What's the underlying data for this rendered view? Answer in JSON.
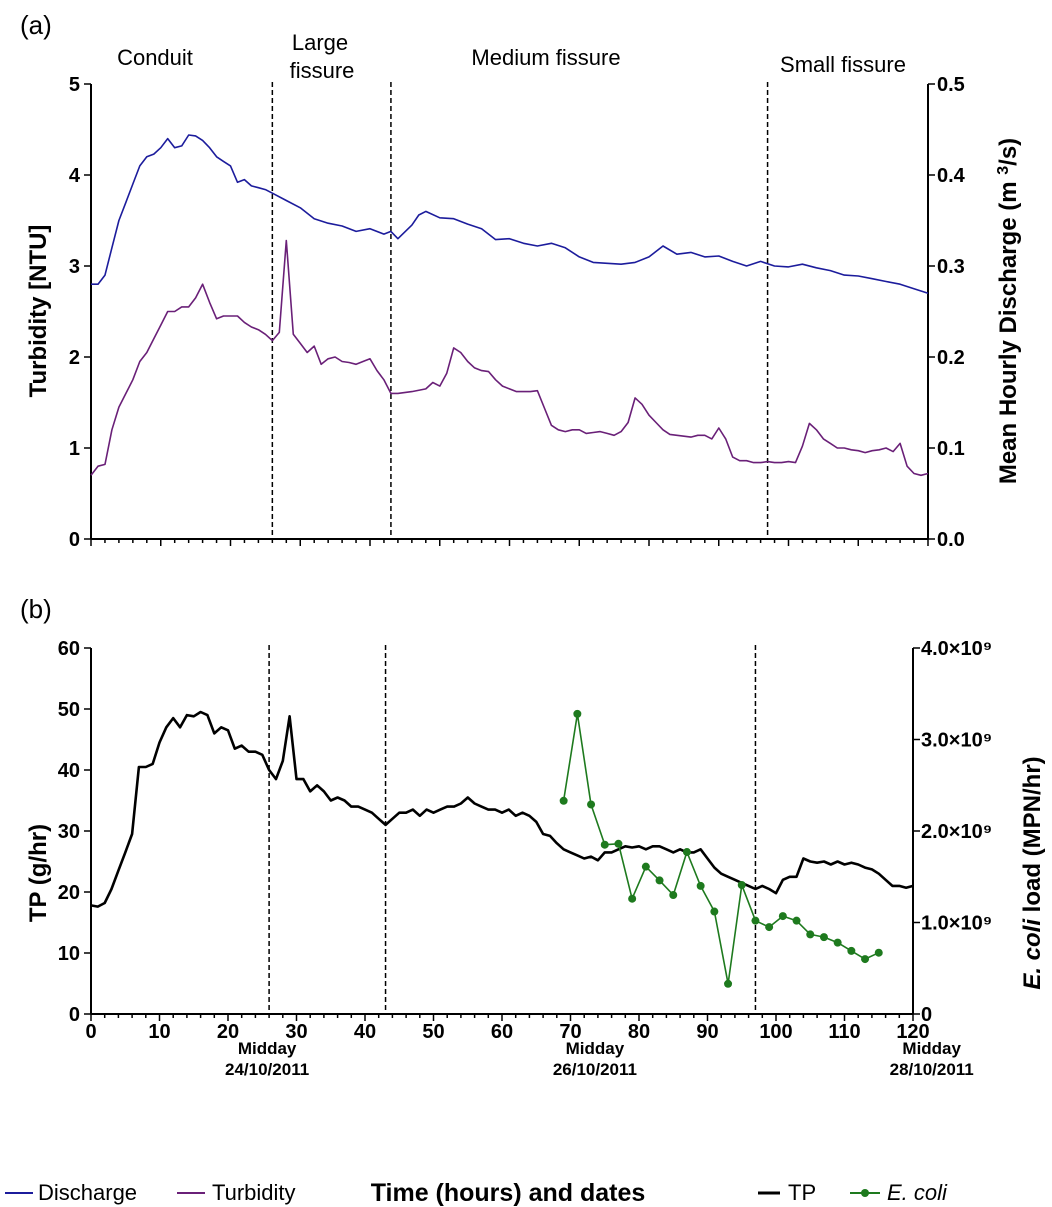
{
  "panel_a": {
    "label": "(a)",
    "regions": [
      "Conduit",
      "Large",
      "fissure",
      "Medium fissure",
      "Small fissure"
    ],
    "left_axis_label": "Turbidity [NTU]",
    "right_axis_label": "Mean Hourly Discharge (m 3/s)",
    "right_axis_label_parts": [
      "Mean Hourly Discharge (m ",
      "3",
      "/s)"
    ]
  },
  "panel_b": {
    "label": "(b)",
    "left_axis_label": "TP (g/hr)",
    "right_axis_label": "E. coli load (MPN/hr)",
    "right_axis_label_parts": [
      "E. coli",
      " load (MPN/hr)"
    ]
  },
  "x_axis": {
    "label": "Time (hours) and dates",
    "date_labels": [
      {
        "x": 26,
        "line1": "Midday",
        "line2": "24/10/2011"
      },
      {
        "x": 74,
        "line1": "Midday",
        "line2": "26/10/2011"
      },
      {
        "x": 122,
        "line1": "Midday",
        "line2": "28/10/2011"
      }
    ]
  },
  "legend": {
    "discharge": "Discharge",
    "turbidity": "Turbidity",
    "tp": "TP",
    "ecoli": "E. coli"
  },
  "colors": {
    "discharge": "#1c1c9c",
    "turbidity": "#6a2078",
    "tp": "#000000",
    "ecoli": "#1e7a1e"
  },
  "chart_data": [
    {
      "type": "line",
      "xlim": [
        0,
        120
      ],
      "x_ticks": [
        0,
        10,
        20,
        30,
        40,
        50,
        60,
        70,
        80,
        90,
        100,
        110,
        120
      ],
      "y_left": {
        "label": "Turbidity [NTU]",
        "lim": [
          0,
          5
        ],
        "ticks": [
          "0",
          "1",
          "2",
          "3",
          "4",
          "5"
        ]
      },
      "y_right": {
        "label": "Mean Hourly Discharge (m 3/s)",
        "lim": [
          0,
          0.5
        ],
        "ticks": [
          "0.0",
          "0.1",
          "0.2",
          "0.3",
          "0.4",
          "0.5"
        ]
      },
      "dividers_x": [
        26,
        43,
        97
      ],
      "series": [
        {
          "name": "Discharge",
          "axis": "right",
          "x": [
            0,
            1,
            2,
            3,
            4,
            5,
            6,
            7,
            8,
            9,
            10,
            11,
            12,
            13,
            14,
            15,
            16,
            17,
            18,
            19,
            20,
            21,
            22,
            23,
            24,
            25,
            26,
            28,
            30,
            32,
            34,
            36,
            38,
            40,
            42,
            43,
            44,
            46,
            47,
            48,
            50,
            52,
            54,
            56,
            58,
            60,
            62,
            64,
            66,
            68,
            70,
            72,
            74,
            76,
            78,
            80,
            82,
            84,
            86,
            88,
            90,
            92,
            94,
            96,
            98,
            100,
            102,
            104,
            106,
            108,
            110,
            112,
            114,
            116,
            118,
            120
          ],
          "values": [
            0.28,
            0.28,
            0.29,
            0.32,
            0.35,
            0.37,
            0.39,
            0.41,
            0.42,
            0.423,
            0.43,
            0.44,
            0.43,
            0.432,
            0.444,
            0.443,
            0.438,
            0.43,
            0.42,
            0.415,
            0.41,
            0.392,
            0.395,
            0.388,
            0.386,
            0.384,
            0.38,
            0.372,
            0.364,
            0.352,
            0.347,
            0.344,
            0.338,
            0.341,
            0.335,
            0.338,
            0.33,
            0.345,
            0.356,
            0.36,
            0.353,
            0.352,
            0.346,
            0.341,
            0.329,
            0.33,
            0.325,
            0.322,
            0.325,
            0.32,
            0.31,
            0.304,
            0.303,
            0.302,
            0.304,
            0.31,
            0.322,
            0.313,
            0.315,
            0.31,
            0.311,
            0.305,
            0.3,
            0.305,
            0.3,
            0.299,
            0.302,
            0.298,
            0.295,
            0.29,
            0.289,
            0.286,
            0.283,
            0.28,
            0.275,
            0.27
          ]
        },
        {
          "name": "Turbidity",
          "axis": "left",
          "x": [
            0,
            1,
            2,
            3,
            4,
            5,
            6,
            7,
            8,
            9,
            10,
            11,
            12,
            13,
            14,
            15,
            16,
            17,
            18,
            19,
            20,
            21,
            22,
            23,
            24,
            25,
            26,
            27,
            28,
            29,
            30,
            31,
            32,
            33,
            34,
            35,
            36,
            37,
            38,
            39,
            40,
            41,
            42,
            43,
            44,
            46,
            48,
            49,
            50,
            51,
            52,
            53,
            54,
            55,
            56,
            57,
            58,
            59,
            60,
            61,
            62,
            63,
            64,
            65,
            66,
            67,
            68,
            69,
            70,
            71,
            72,
            73,
            74,
            75,
            76,
            77,
            78,
            79,
            80,
            81,
            82,
            83,
            84,
            85,
            86,
            87,
            88,
            89,
            90,
            91,
            92,
            93,
            94,
            95,
            96,
            97,
            98,
            99,
            100,
            101,
            102,
            103,
            104,
            105,
            106,
            107,
            108,
            109,
            110,
            111,
            112,
            113,
            114,
            115,
            116,
            117,
            118,
            119,
            120
          ],
          "values": [
            0.7,
            0.8,
            0.82,
            1.2,
            1.45,
            1.6,
            1.75,
            1.95,
            2.05,
            2.2,
            2.35,
            2.5,
            2.5,
            2.55,
            2.55,
            2.65,
            2.8,
            2.6,
            2.42,
            2.45,
            2.45,
            2.45,
            2.38,
            2.33,
            2.3,
            2.25,
            2.18,
            2.27,
            3.28,
            2.25,
            2.15,
            2.05,
            2.12,
            1.92,
            1.98,
            2.0,
            1.95,
            1.94,
            1.92,
            1.95,
            1.98,
            1.85,
            1.75,
            1.6,
            1.6,
            1.62,
            1.65,
            1.72,
            1.68,
            1.82,
            2.1,
            2.05,
            1.95,
            1.88,
            1.85,
            1.84,
            1.75,
            1.68,
            1.65,
            1.62,
            1.62,
            1.62,
            1.63,
            1.44,
            1.25,
            1.2,
            1.18,
            1.2,
            1.2,
            1.16,
            1.17,
            1.18,
            1.16,
            1.14,
            1.18,
            1.28,
            1.55,
            1.48,
            1.36,
            1.28,
            1.2,
            1.15,
            1.14,
            1.13,
            1.12,
            1.14,
            1.14,
            1.1,
            1.22,
            1.1,
            0.9,
            0.86,
            0.86,
            0.84,
            0.84,
            0.85,
            0.84,
            0.84,
            0.85,
            0.84,
            1.02,
            1.27,
            1.2,
            1.1,
            1.05,
            1.0,
            1.0,
            0.98,
            0.97,
            0.95,
            0.97,
            0.98,
            1.0,
            0.96,
            1.05,
            0.8,
            0.72,
            0.7,
            0.72
          ],
          "_note_unused": null
        }
      ]
    },
    {
      "type": "line",
      "xlim": [
        0,
        120
      ],
      "x_ticks": [
        0,
        10,
        20,
        30,
        40,
        50,
        60,
        70,
        80,
        90,
        100,
        110,
        120
      ],
      "y_left": {
        "label": "TP (g/hr)",
        "lim": [
          0,
          60
        ],
        "ticks": [
          "0",
          "10",
          "20",
          "30",
          "40",
          "50",
          "60"
        ]
      },
      "y_right": {
        "label": "E. coli load (MPN/hr)",
        "lim": [
          0,
          4000000000.0
        ],
        "ticks": [
          "0",
          "1.0×10⁹",
          "2.0×10⁹",
          "3.0×10⁹",
          "4.0×10⁹"
        ]
      },
      "dividers_x": [
        26,
        43,
        97
      ],
      "series": [
        {
          "name": "TP",
          "axis": "left",
          "x": [
            0,
            1,
            2,
            3,
            4,
            5,
            6,
            7,
            8,
            9,
            10,
            11,
            12,
            13,
            14,
            15,
            16,
            17,
            18,
            19,
            20,
            21,
            22,
            23,
            24,
            25,
            26,
            27,
            28,
            29,
            30,
            31,
            32,
            33,
            34,
            35,
            36,
            37,
            38,
            39,
            40,
            41,
            42,
            43,
            44,
            45,
            46,
            47,
            48,
            49,
            50,
            51,
            52,
            53,
            54,
            55,
            56,
            57,
            58,
            59,
            60,
            61,
            62,
            63,
            64,
            65,
            66,
            67,
            68,
            69,
            70,
            71,
            72,
            73,
            74,
            75,
            76,
            77,
            78,
            79,
            80,
            81,
            82,
            83,
            84,
            85,
            86,
            87,
            88,
            89,
            90,
            91,
            92,
            93,
            94,
            95,
            96,
            97,
            98,
            99,
            100,
            101,
            102,
            103,
            104,
            105,
            106,
            107,
            108,
            109,
            110,
            111,
            112,
            113,
            114,
            115,
            116,
            117,
            118,
            119,
            120
          ],
          "values": [
            17.8,
            17.6,
            18.2,
            20.5,
            23.5,
            26.5,
            29.5,
            40.5,
            40.5,
            41,
            44.5,
            47,
            48.5,
            47,
            49,
            48.8,
            49.5,
            49,
            46,
            47,
            46.5,
            43.5,
            44,
            43,
            43,
            42.5,
            40,
            38.5,
            41.5,
            48.8,
            38.5,
            38.5,
            36.5,
            37.5,
            36.5,
            35,
            35.5,
            35,
            34,
            34,
            33.5,
            33,
            32,
            31,
            32,
            33,
            33,
            33.5,
            32.5,
            33.5,
            33,
            33.5,
            34,
            34,
            34.5,
            35.5,
            34.5,
            34,
            33.5,
            33.5,
            33,
            33.5,
            32.5,
            33,
            32.5,
            31.5,
            29.5,
            29.2,
            28,
            27,
            26.5,
            26,
            25.5,
            25.8,
            25.2,
            26.5,
            26.5,
            27,
            27.5,
            27.3,
            27.5,
            27,
            27.5,
            27.5,
            27,
            26.5,
            27,
            26.5,
            26.5,
            27,
            25.5,
            24,
            23,
            22.5,
            22,
            21.5,
            21,
            20.5,
            21,
            20.5,
            19.8,
            22,
            22.5,
            22.5,
            25.5,
            25,
            24.8,
            25,
            24.5,
            25,
            24.5,
            24.8,
            24.5,
            24,
            23.7,
            23,
            22,
            21,
            21,
            20.7,
            21
          ],
          "_note_unused": null
        },
        {
          "name": "E. coli",
          "axis": "right",
          "x": [
            69,
            71,
            73,
            75,
            77,
            79,
            81,
            83,
            85,
            87,
            89,
            91,
            93,
            95,
            97,
            99,
            101,
            103,
            105,
            107,
            109,
            111,
            113,
            115
          ],
          "values": [
            2330000000.0,
            3280000000.0,
            2290000000.0,
            1850000000.0,
            1860000000.0,
            1260000000.0,
            1610000000.0,
            1460000000.0,
            1300000000.0,
            1770000000.0,
            1400000000.0,
            1120000000.0,
            330000000.0,
            1410000000.0,
            1020000000.0,
            950000000.0,
            1070000000.0,
            1020000000.0,
            870000000.0,
            840000000.0,
            780000000.0,
            690000000.0,
            600000000.0,
            670000000.0
          ]
        }
      ]
    }
  ]
}
